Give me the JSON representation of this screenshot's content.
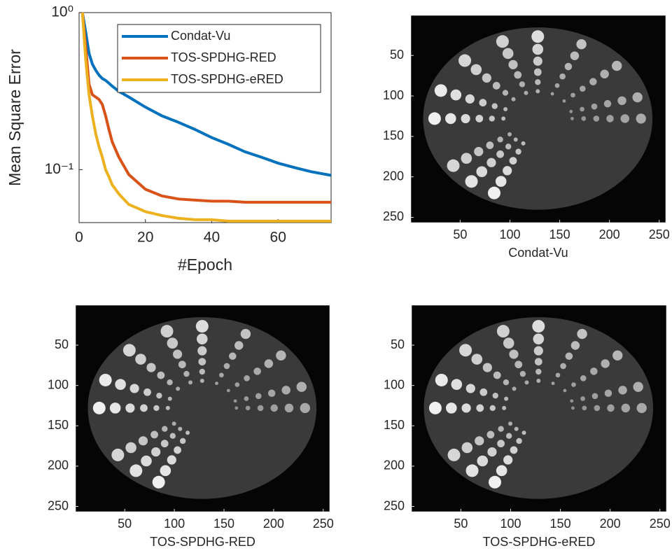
{
  "chart_data": [
    {
      "type": "line",
      "xlabel": "#Epoch",
      "ylabel": "Mean Square Error",
      "log_y": true,
      "legend": "northeast",
      "x": [
        1,
        2,
        3,
        4,
        5,
        6,
        7,
        8,
        9,
        10,
        12,
        15,
        20,
        25,
        30,
        35,
        40,
        45,
        50,
        55,
        60,
        65,
        70,
        76
      ],
      "series": [
        {
          "name": "Condat-Vu",
          "color": "#0072bd",
          "values": [
            1,
            0.75,
            0.55,
            0.47,
            0.43,
            0.4,
            0.38,
            0.37,
            0.355,
            0.34,
            0.315,
            0.29,
            0.25,
            0.22,
            0.2,
            0.18,
            0.16,
            0.145,
            0.13,
            0.12,
            0.11,
            0.103,
            0.097,
            0.092
          ]
        },
        {
          "name": "TOS-SPDHG-RED",
          "color": "#d95319",
          "values": [
            1,
            0.6,
            0.35,
            0.3,
            0.29,
            0.28,
            0.26,
            0.22,
            0.18,
            0.15,
            0.12,
            0.093,
            0.075,
            0.068,
            0.065,
            0.064,
            0.063,
            0.063,
            0.062,
            0.062,
            0.062,
            0.062,
            0.062,
            0.062
          ]
        },
        {
          "name": "TOS-SPDHG-eRED",
          "color": "#edb120",
          "values": [
            1,
            0.5,
            0.3,
            0.22,
            0.17,
            0.14,
            0.12,
            0.1,
            0.09,
            0.08,
            0.07,
            0.06,
            0.054,
            0.051,
            0.049,
            0.048,
            0.048,
            0.047,
            0.047,
            0.047,
            0.047,
            0.047,
            0.047,
            0.047
          ]
        }
      ],
      "xlim": [
        0,
        76
      ],
      "xticks": [
        0,
        20,
        40,
        60
      ],
      "ylim": [
        0.046,
        1
      ],
      "yticks": [
        {
          "value": 1,
          "label": "10⁰"
        },
        {
          "value": 0.1,
          "label": "10⁻¹"
        }
      ]
    },
    {
      "type": "image",
      "xlabel": "Condat-Vu",
      "xlim": [
        0.5,
        256.5
      ],
      "ylim": [
        256.5,
        0.5
      ],
      "xticks": [
        50,
        100,
        150,
        200,
        250
      ],
      "yticks": [
        50,
        100,
        150,
        200,
        250
      ]
    },
    {
      "type": "image",
      "xlabel": "TOS-SPDHG-RED",
      "xlim": [
        0.5,
        256.5
      ],
      "ylim": [
        256.5,
        0.5
      ],
      "xticks": [
        50,
        100,
        150,
        200,
        250
      ],
      "yticks": [
        50,
        100,
        150,
        200,
        250
      ]
    },
    {
      "type": "image",
      "xlabel": "TOS-SPDHG-eRED",
      "xlim": [
        0.5,
        256.5
      ],
      "ylim": [
        256.5,
        0.5
      ],
      "xticks": [
        50,
        100,
        150,
        200,
        250
      ],
      "yticks": [
        50,
        100,
        150,
        200,
        250
      ]
    }
  ]
}
